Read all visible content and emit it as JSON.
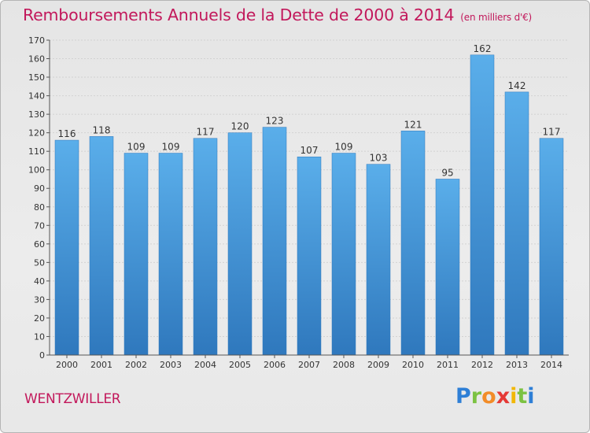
{
  "title": "Remboursements Annuels de la Dette de 2000 à 2014",
  "unit_label": "(en milliers d'€)",
  "commune": "WENTZWILLER",
  "logo": {
    "text": "Proxiti",
    "letters": [
      {
        "ch": "P",
        "color": "#2e7fd6"
      },
      {
        "ch": "r",
        "color": "#7cc242"
      },
      {
        "ch": "o",
        "color": "#f28c28"
      },
      {
        "ch": "x",
        "color": "#e53935"
      },
      {
        "ch": "i",
        "color": "#f2b705"
      },
      {
        "ch": "t",
        "color": "#7cc242"
      },
      {
        "ch": "i",
        "color": "#2e7fd6"
      }
    ]
  },
  "chart_data": {
    "type": "bar",
    "title": "Remboursements Annuels de la Dette de 2000 à 2014",
    "ylabel": "en milliers d'€",
    "xlabel": "",
    "categories": [
      "2000",
      "2001",
      "2002",
      "2003",
      "2004",
      "2005",
      "2006",
      "2007",
      "2008",
      "2009",
      "2010",
      "2011",
      "2012",
      "2013",
      "2014"
    ],
    "values": [
      116,
      118,
      109,
      109,
      117,
      120,
      123,
      107,
      109,
      103,
      121,
      95,
      162,
      142,
      117
    ],
    "ylim": [
      0,
      170
    ],
    "ytick_step": 10,
    "grid": true,
    "bar_color": "#4f9fe0"
  }
}
